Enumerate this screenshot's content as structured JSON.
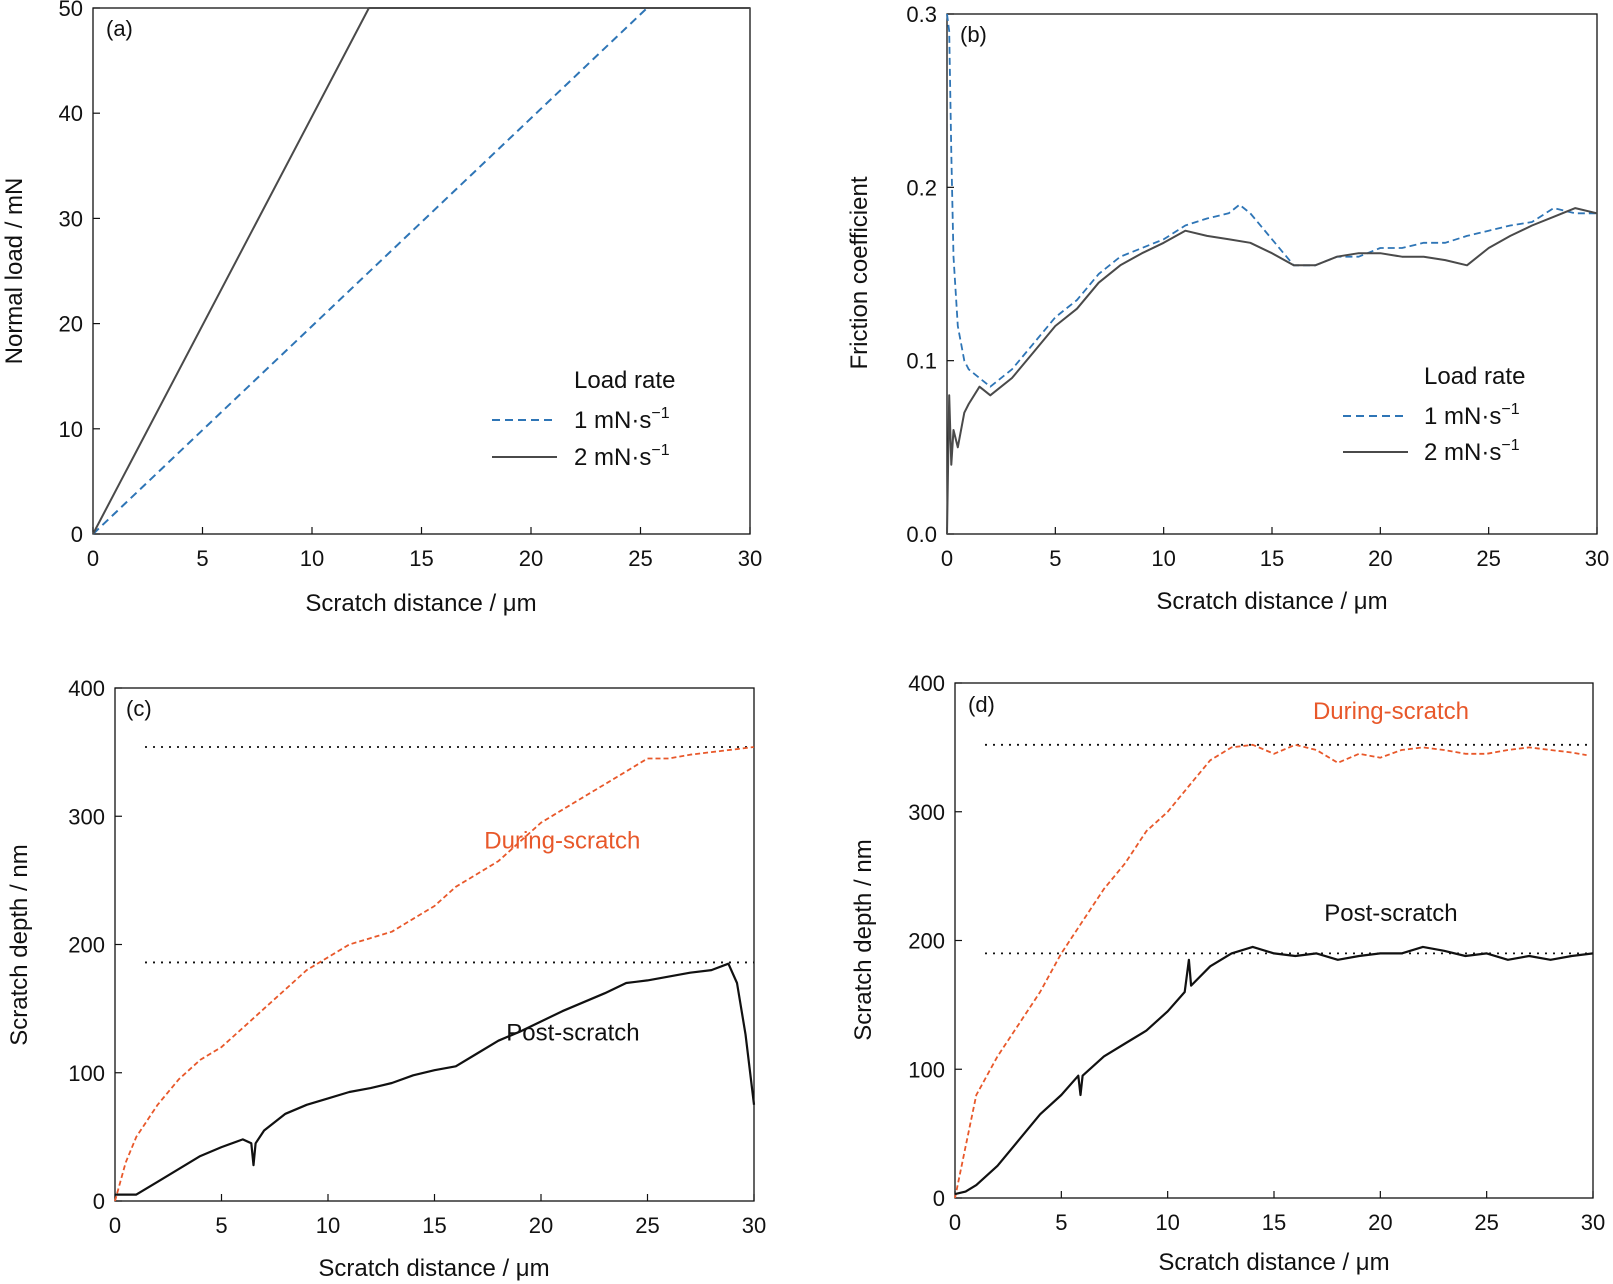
{
  "figure": {
    "panels": [
      "(a)",
      "(b)",
      "(c)",
      "(d)"
    ]
  },
  "colors": {
    "blue": "#2e75b6",
    "gray": "#4a4a4a",
    "orange": "#e8582a",
    "black": "#111111"
  },
  "chart_data": [
    {
      "type": "line",
      "panel_label": "(a)",
      "xlabel": "Scratch distance / μm",
      "ylabel": "Normal load / mN",
      "xlim": [
        0,
        30
      ],
      "ylim": [
        0,
        50
      ],
      "xticks": [
        "0",
        "5",
        "10",
        "15",
        "20",
        "25",
        "30"
      ],
      "yticks": [
        "0",
        "10",
        "20",
        "30",
        "40",
        "50"
      ],
      "legend": {
        "title": "Load rate",
        "placement": "lower-right",
        "entries": [
          "1 mN·s",
          "2 mN·s"
        ],
        "superscript": "−1"
      },
      "series": [
        {
          "name": "1 mN·s⁻¹",
          "style": "dashed",
          "x": [
            0,
            25.3,
            30
          ],
          "y": [
            0,
            50,
            50
          ]
        },
        {
          "name": "2 mN·s⁻¹",
          "style": "solid",
          "x": [
            0,
            12.6,
            30
          ],
          "y": [
            0,
            50,
            50
          ]
        }
      ]
    },
    {
      "type": "line",
      "panel_label": "(b)",
      "xlabel": "Scratch distance / μm",
      "ylabel": "Friction coefficient",
      "xlim": [
        0,
        30
      ],
      "ylim": [
        0,
        0.3
      ],
      "xticks": [
        "0",
        "5",
        "10",
        "15",
        "20",
        "25",
        "30"
      ],
      "yticks": [
        "0.0",
        "0.1",
        "0.2",
        "0.3"
      ],
      "legend": {
        "title": "Load rate",
        "placement": "lower-right",
        "entries": [
          "1 mN·s",
          "2 mN·s"
        ],
        "superscript": "−1"
      },
      "series": [
        {
          "name": "1 mN·s⁻¹",
          "style": "dashed",
          "x": [
            0,
            0.1,
            0.2,
            0.3,
            0.5,
            0.8,
            1.0,
            1.5,
            2.0,
            3.0,
            4.0,
            5.0,
            6.0,
            7.0,
            8.0,
            9.0,
            10.0,
            11.0,
            12.0,
            13.0,
            13.5,
            14.0,
            15.0,
            16.0,
            17.0,
            18.0,
            19.0,
            20.0,
            21.0,
            22.0,
            23.0,
            24.0,
            25.0,
            26.0,
            27.0,
            28.0,
            29.0,
            30.0
          ],
          "y": [
            0.3,
            0.29,
            0.22,
            0.16,
            0.12,
            0.1,
            0.095,
            0.09,
            0.085,
            0.095,
            0.11,
            0.125,
            0.135,
            0.15,
            0.16,
            0.165,
            0.17,
            0.178,
            0.182,
            0.185,
            0.19,
            0.185,
            0.17,
            0.155,
            0.155,
            0.16,
            0.16,
            0.165,
            0.165,
            0.168,
            0.168,
            0.172,
            0.175,
            0.178,
            0.18,
            0.188,
            0.185,
            0.185
          ]
        },
        {
          "name": "2 mN·s⁻¹",
          "style": "solid",
          "x": [
            0,
            0.1,
            0.2,
            0.3,
            0.5,
            0.8,
            1.0,
            1.5,
            2.0,
            3.0,
            4.0,
            5.0,
            6.0,
            7.0,
            8.0,
            9.0,
            10.0,
            11.0,
            12.0,
            13.0,
            14.0,
            15.0,
            16.0,
            17.0,
            18.0,
            19.0,
            20.0,
            21.0,
            22.0,
            23.0,
            24.0,
            25.0,
            26.0,
            27.0,
            28.0,
            29.0,
            30.0
          ],
          "y": [
            0.0,
            0.08,
            0.04,
            0.06,
            0.05,
            0.07,
            0.075,
            0.085,
            0.08,
            0.09,
            0.105,
            0.12,
            0.13,
            0.145,
            0.155,
            0.162,
            0.168,
            0.175,
            0.172,
            0.17,
            0.168,
            0.162,
            0.155,
            0.155,
            0.16,
            0.162,
            0.162,
            0.16,
            0.16,
            0.158,
            0.155,
            0.165,
            0.172,
            0.178,
            0.183,
            0.188,
            0.185
          ]
        }
      ]
    },
    {
      "type": "line",
      "panel_label": "(c)",
      "xlabel": "Scratch distance / μm",
      "ylabel": "Scratch depth / nm",
      "xlim": [
        0,
        30
      ],
      "ylim": [
        0,
        400
      ],
      "xticks": [
        "0",
        "5",
        "10",
        "15",
        "20",
        "25",
        "30"
      ],
      "yticks": [
        "0",
        "100",
        "200",
        "300",
        "400"
      ],
      "reference_lines": [
        354,
        186
      ],
      "annotations": [
        {
          "text": "During-scratch",
          "x": 21,
          "y": 275,
          "color": "orange"
        },
        {
          "text": "Post-scratch",
          "x": 21.5,
          "y": 125,
          "color": "black"
        }
      ],
      "series": [
        {
          "name": "During-scratch",
          "style": "dashed",
          "x": [
            0,
            0.5,
            1,
            2,
            3,
            4,
            5,
            6,
            7,
            8,
            9,
            10,
            11,
            12,
            13,
            14,
            15,
            16,
            17,
            18,
            19,
            20,
            21,
            22,
            23,
            24,
            25,
            26,
            27,
            28,
            29,
            30
          ],
          "y": [
            0,
            30,
            50,
            75,
            95,
            110,
            120,
            135,
            150,
            165,
            180,
            190,
            200,
            205,
            210,
            220,
            230,
            245,
            255,
            265,
            280,
            295,
            305,
            315,
            325,
            335,
            345,
            345,
            348,
            350,
            352,
            354
          ]
        },
        {
          "name": "Post-scratch",
          "style": "solid",
          "x": [
            0,
            1,
            2,
            3,
            4,
            5,
            6,
            6.4,
            6.5,
            6.6,
            7,
            8,
            9,
            10,
            11,
            12,
            13,
            14,
            15,
            16,
            17,
            18,
            19,
            20,
            21,
            22,
            23,
            24,
            25,
            26,
            27,
            28,
            28.8,
            29.2,
            29.6,
            30
          ],
          "y": [
            5,
            5,
            15,
            25,
            35,
            42,
            48,
            45,
            28,
            45,
            55,
            68,
            75,
            80,
            85,
            88,
            92,
            98,
            102,
            105,
            115,
            125,
            132,
            140,
            148,
            155,
            162,
            170,
            172,
            175,
            178,
            180,
            185,
            170,
            130,
            75
          ]
        }
      ]
    },
    {
      "type": "line",
      "panel_label": "(d)",
      "xlabel": "Scratch distance / μm",
      "ylabel": "Scratch depth / nm",
      "xlim": [
        0,
        30
      ],
      "ylim": [
        0,
        400
      ],
      "xticks": [
        "0",
        "5",
        "10",
        "15",
        "20",
        "25",
        "30"
      ],
      "yticks": [
        "0",
        "100",
        "200",
        "300",
        "400"
      ],
      "reference_lines": [
        352,
        190
      ],
      "annotations": [
        {
          "text": "During-scratch",
          "x": 20.5,
          "y": 372,
          "color": "orange"
        },
        {
          "text": "Post-scratch",
          "x": 20.5,
          "y": 215,
          "color": "black"
        }
      ],
      "series": [
        {
          "name": "During-scratch",
          "style": "dashed",
          "x": [
            0,
            0.5,
            1,
            2,
            3,
            4,
            5,
            6,
            7,
            8,
            9,
            10,
            11,
            12,
            13,
            14,
            15,
            16,
            17,
            18,
            19,
            20,
            21,
            22,
            23,
            24,
            25,
            26,
            27,
            28,
            29,
            29.7
          ],
          "y": [
            0,
            40,
            80,
            110,
            135,
            160,
            190,
            215,
            240,
            260,
            285,
            300,
            320,
            340,
            350,
            352,
            345,
            352,
            348,
            338,
            345,
            342,
            348,
            350,
            348,
            345,
            345,
            348,
            350,
            348,
            346,
            344
          ]
        },
        {
          "name": "Post-scratch",
          "style": "solid",
          "x": [
            0,
            0.5,
            1,
            2,
            3,
            4,
            5,
            5.8,
            5.9,
            6.0,
            7,
            8,
            9,
            10,
            10.8,
            11,
            11.1,
            12,
            13,
            14,
            15,
            16,
            17,
            18,
            19,
            20,
            21,
            22,
            23,
            24,
            25,
            26,
            27,
            28,
            29,
            30
          ],
          "y": [
            3,
            5,
            10,
            25,
            45,
            65,
            80,
            95,
            80,
            95,
            110,
            120,
            130,
            145,
            160,
            185,
            165,
            180,
            190,
            195,
            190,
            188,
            190,
            185,
            188,
            190,
            190,
            195,
            192,
            188,
            190,
            185,
            188,
            185,
            188,
            190
          ]
        }
      ]
    }
  ]
}
